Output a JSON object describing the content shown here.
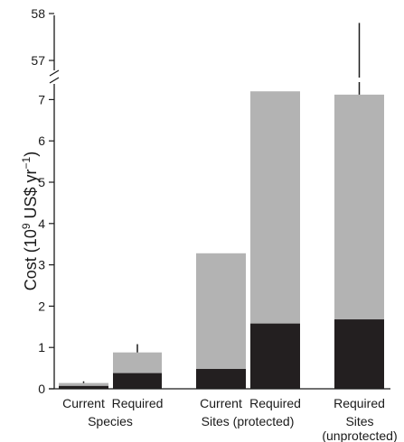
{
  "chart_data": {
    "type": "bar",
    "stacked": true,
    "ylabel": "Cost (10",
    "ylabel_sup": "9",
    "ylabel_tail1": " US$ yr",
    "ylabel_sup2": "−1",
    "ylabel_tail2": ")",
    "y_axis": {
      "lower_range": [
        0,
        7.4
      ],
      "upper_range": [
        56.7,
        58.1
      ],
      "broken": true,
      "lower_ticks": [
        {
          "value": 0,
          "label": "0"
        },
        {
          "value": 1,
          "label": "1"
        },
        {
          "value": 2,
          "label": "2"
        },
        {
          "value": 3,
          "label": "3"
        },
        {
          "value": 4,
          "label": "4"
        },
        {
          "value": 5,
          "label": "5"
        },
        {
          "value": 6,
          "label": "6"
        },
        {
          "value": 7,
          "label": "7"
        }
      ],
      "upper_ticks": [
        {
          "value": 57,
          "label": "57"
        },
        {
          "value": 58,
          "label": "58"
        }
      ]
    },
    "bars": [
      {
        "label": "Current",
        "group": 0,
        "dark": 0.07,
        "total": 0.14,
        "error_top": 0.18
      },
      {
        "label": "Required",
        "group": 0,
        "dark": 0.38,
        "total": 0.88,
        "error_top": 1.08
      },
      {
        "label": "Current",
        "group": 1,
        "dark": 0.48,
        "total": 3.28,
        "error_top": null
      },
      {
        "label": "Required",
        "group": 1,
        "dark": 1.58,
        "total": 7.2,
        "error_top": null
      },
      {
        "label": "Required",
        "group": 2,
        "dark": 1.68,
        "total": 7.12,
        "error_top": 57.8
      }
    ],
    "groups": [
      {
        "lines": [
          "Species"
        ]
      },
      {
        "lines": [
          "Sites (protected)"
        ]
      },
      {
        "lines": [
          "Sites",
          "(unprotected)"
        ]
      }
    ],
    "colors": {
      "dark": "#231f20",
      "light": "#b3b3b3",
      "axis": "#1a1a1a"
    }
  }
}
